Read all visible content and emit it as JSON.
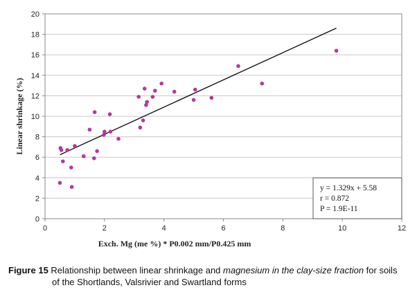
{
  "chart_data": {
    "type": "scatter",
    "xlabel": "Exch. Mg (me %) * P0.002 mm/P0.425 mm",
    "ylabel": "Linear shrinkage (%)",
    "xlim": [
      0,
      12
    ],
    "ylim": [
      0,
      20
    ],
    "xticks": [
      0,
      2,
      4,
      6,
      8,
      10,
      12
    ],
    "yticks": [
      0,
      2,
      4,
      6,
      8,
      10,
      12,
      14,
      16,
      18,
      20
    ],
    "grid": "horizontal",
    "point_color": "#b5379c",
    "points": [
      {
        "x": 0.5,
        "y": 3.5
      },
      {
        "x": 0.52,
        "y": 6.9
      },
      {
        "x": 0.55,
        "y": 6.7
      },
      {
        "x": 0.6,
        "y": 5.6
      },
      {
        "x": 0.75,
        "y": 6.7
      },
      {
        "x": 0.88,
        "y": 5.0
      },
      {
        "x": 0.9,
        "y": 3.1
      },
      {
        "x": 1.0,
        "y": 7.1
      },
      {
        "x": 1.3,
        "y": 6.1
      },
      {
        "x": 1.5,
        "y": 8.7
      },
      {
        "x": 1.65,
        "y": 5.9
      },
      {
        "x": 1.67,
        "y": 10.4
      },
      {
        "x": 1.75,
        "y": 6.6
      },
      {
        "x": 1.98,
        "y": 8.2
      },
      {
        "x": 2.0,
        "y": 8.5
      },
      {
        "x": 2.18,
        "y": 10.2
      },
      {
        "x": 2.2,
        "y": 8.5
      },
      {
        "x": 2.47,
        "y": 7.8
      },
      {
        "x": 3.15,
        "y": 11.9
      },
      {
        "x": 3.2,
        "y": 8.9
      },
      {
        "x": 3.3,
        "y": 9.6
      },
      {
        "x": 3.35,
        "y": 12.7
      },
      {
        "x": 3.4,
        "y": 11.1
      },
      {
        "x": 3.43,
        "y": 11.4
      },
      {
        "x": 3.62,
        "y": 11.9
      },
      {
        "x": 3.7,
        "y": 12.5
      },
      {
        "x": 3.92,
        "y": 13.2
      },
      {
        "x": 4.35,
        "y": 12.4
      },
      {
        "x": 5.0,
        "y": 11.6
      },
      {
        "x": 5.05,
        "y": 12.6
      },
      {
        "x": 5.6,
        "y": 11.8
      },
      {
        "x": 6.5,
        "y": 14.9
      },
      {
        "x": 7.3,
        "y": 13.2
      },
      {
        "x": 9.8,
        "y": 16.4
      }
    ],
    "trendline": {
      "slope": 1.329,
      "intercept": 5.58,
      "x_start": 0.5,
      "x_end": 9.8
    },
    "stats": [
      "y = 1.329x + 5.58",
      "r = 0.872",
      "P = 1.9E-11"
    ]
  },
  "caption": {
    "label": "Figure 15",
    "text_1": " Relationship between linear shrinkage and ",
    "text_italic": "magnesium in the clay-size fraction",
    "text_2": " for soils",
    "text_line2": "of the Shortlands, Valsrivier and Swartland forms"
  }
}
